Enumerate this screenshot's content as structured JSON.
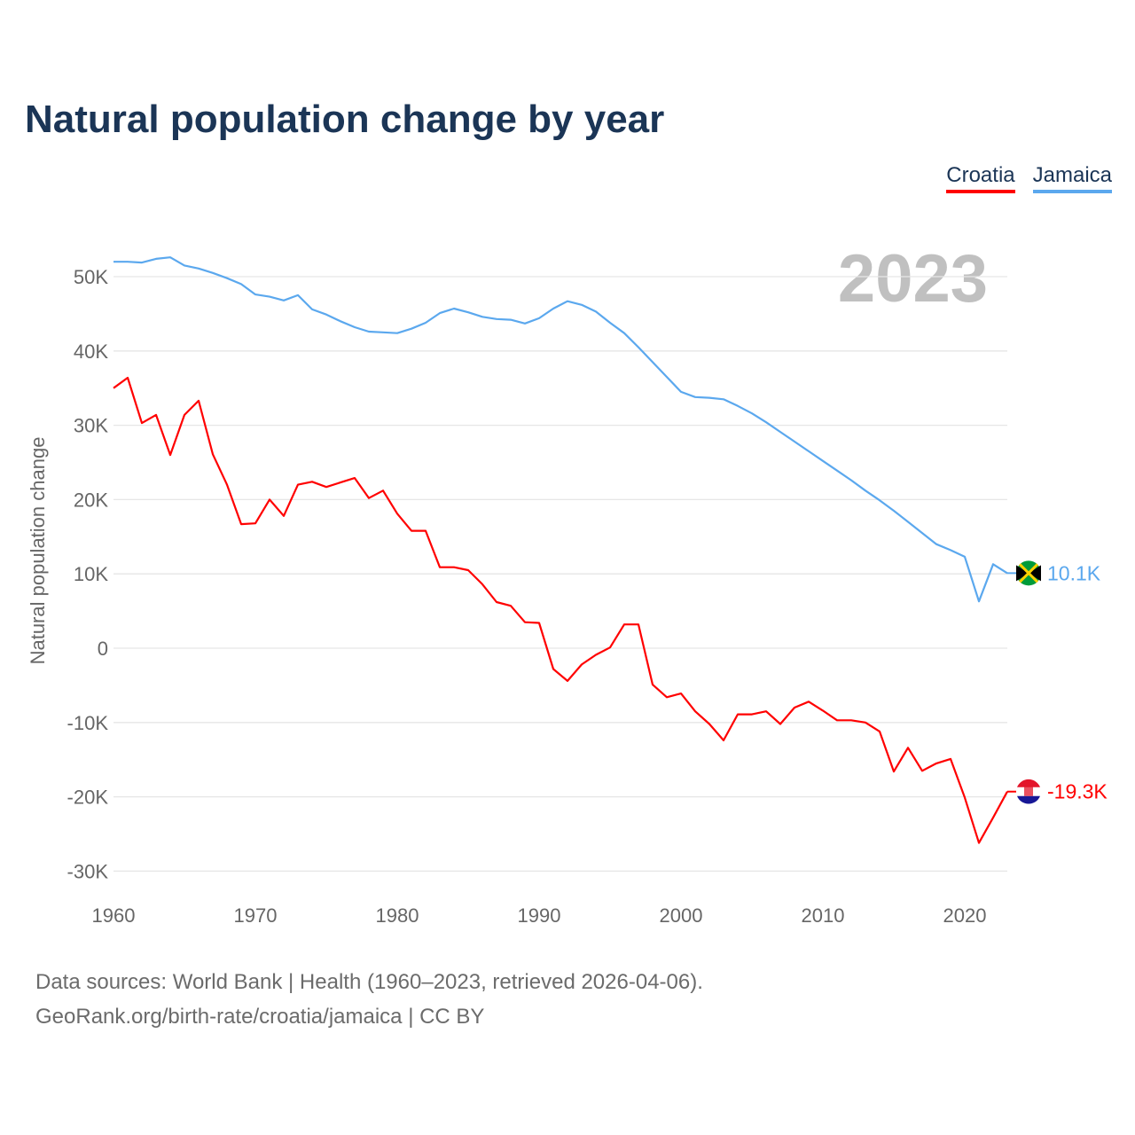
{
  "title": "Natural population change by year",
  "source_line1": "Data sources: World Bank | Health (1960–2023, retrieved 2026-04-06).",
  "source_line2": "GeoRank.org/birth-rate/croatia/jamaica | CC BY",
  "chart_data": {
    "type": "line",
    "title": "Natural population change by year",
    "xlabel": "",
    "ylabel": "Natural population change",
    "xlim": [
      1960,
      2023
    ],
    "ylim": [
      -30000,
      55000
    ],
    "grid": true,
    "legend_placement": "top-right",
    "year_watermark": "2023",
    "x_ticks": [
      1960,
      1970,
      1980,
      1990,
      2000,
      2010,
      2020
    ],
    "x_tick_labels": [
      "1960",
      "1970",
      "1980",
      "1990",
      "2000",
      "2010",
      "2020"
    ],
    "y_ticks": [
      -30000,
      -20000,
      -10000,
      0,
      10000,
      20000,
      30000,
      40000,
      50000
    ],
    "y_tick_labels": [
      "-30K",
      "-20K",
      "-10K",
      "0",
      "10K",
      "20K",
      "30K",
      "40K",
      "50K"
    ],
    "x": [
      1960,
      1961,
      1962,
      1963,
      1964,
      1965,
      1966,
      1967,
      1968,
      1969,
      1970,
      1971,
      1972,
      1973,
      1974,
      1975,
      1976,
      1977,
      1978,
      1979,
      1980,
      1981,
      1982,
      1983,
      1984,
      1985,
      1986,
      1987,
      1988,
      1989,
      1990,
      1991,
      1992,
      1993,
      1994,
      1995,
      1996,
      1997,
      1998,
      1999,
      2000,
      2001,
      2002,
      2003,
      2004,
      2005,
      2006,
      2007,
      2008,
      2009,
      2010,
      2011,
      2012,
      2013,
      2014,
      2015,
      2016,
      2017,
      2018,
      2019,
      2020,
      2021,
      2022,
      2023
    ],
    "series": [
      {
        "name": "Croatia",
        "color": "#ff0000",
        "end_label": "-19.3K",
        "flag": "croatia-flag",
        "values": [
          35000,
          36400,
          30300,
          31400,
          26000,
          31400,
          33300,
          26100,
          22000,
          16700,
          16800,
          20000,
          17800,
          22000,
          22400,
          21700,
          22300,
          22900,
          20200,
          21200,
          18100,
          15800,
          15800,
          10900,
          10900,
          10500,
          8600,
          6200,
          5700,
          3500,
          3400,
          -2800,
          -4400,
          -2200,
          -900,
          100,
          3200,
          3200,
          -4900,
          -6600,
          -6100,
          -8500,
          -10200,
          -12400,
          -8900,
          -8900,
          -8500,
          -10200,
          -8000,
          -7200,
          -8400,
          -9700,
          -9700,
          -10000,
          -11200,
          -16600,
          -13400,
          -16500,
          -15500,
          -14900,
          -20100,
          -26200,
          -22800,
          -19300
        ]
      },
      {
        "name": "Jamaica",
        "color": "#5ba8ee",
        "end_label": "10.1K",
        "flag": "jamaica-flag",
        "values": [
          52000,
          52000,
          51900,
          52400,
          52600,
          51500,
          51100,
          50500,
          49800,
          49000,
          47600,
          47300,
          46800,
          47500,
          45600,
          44900,
          44000,
          43200,
          42600,
          42500,
          42400,
          43000,
          43800,
          45100,
          45700,
          45200,
          44600,
          44300,
          44200,
          43700,
          44400,
          45700,
          46700,
          46200,
          45300,
          43800,
          42400,
          40500,
          38500,
          36500,
          34500,
          33800,
          33700,
          33500,
          32600,
          31600,
          30400,
          29100,
          27800,
          26500,
          25200,
          23900,
          22600,
          21200,
          19900,
          18500,
          17000,
          15500,
          14000,
          13200,
          12300,
          6300,
          11300,
          10100
        ]
      }
    ]
  }
}
